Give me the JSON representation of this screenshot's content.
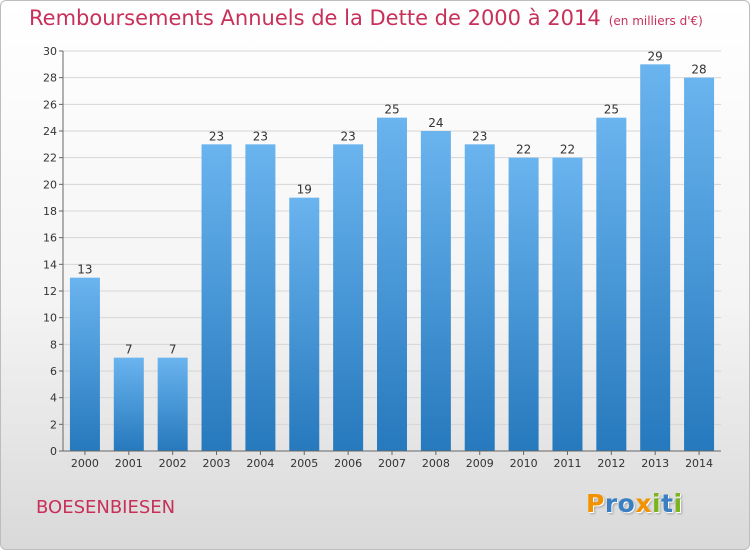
{
  "title": "Remboursements Annuels de la Dette de 2000 à 2014",
  "unit_note": "(en milliers d'€)",
  "commune": "BOESENBIESEN",
  "logo": {
    "letters": [
      "P",
      "r",
      "o",
      "x",
      "i",
      "t",
      "i"
    ],
    "colors": [
      "#f39200",
      "#3a7fc1",
      "#3a7fc1",
      "#f39200",
      "#7ab51d",
      "#3a7fc1",
      "#7ab51d"
    ]
  },
  "colors": {
    "title": "#c8305a",
    "bar_light": "#6ab4ef",
    "bar_dark": "#2679bd",
    "grid": "#d6d6d6"
  },
  "chart_data": {
    "type": "bar",
    "title": "Remboursements Annuels de la Dette de 2000 à 2014",
    "xlabel": "",
    "ylabel": "",
    "categories": [
      "2000",
      "2001",
      "2002",
      "2003",
      "2004",
      "2005",
      "2006",
      "2007",
      "2008",
      "2009",
      "2010",
      "2011",
      "2012",
      "2013",
      "2014"
    ],
    "values": [
      13,
      7,
      7,
      23,
      23,
      19,
      23,
      25,
      24,
      23,
      22,
      22,
      25,
      29,
      28
    ],
    "ylim": [
      0,
      30
    ],
    "yticks": [
      "0",
      "2",
      "4",
      "6",
      "8",
      "10",
      "12",
      "14",
      "16",
      "18",
      "20",
      "22",
      "24",
      "26",
      "28",
      "30"
    ],
    "grid": true
  }
}
